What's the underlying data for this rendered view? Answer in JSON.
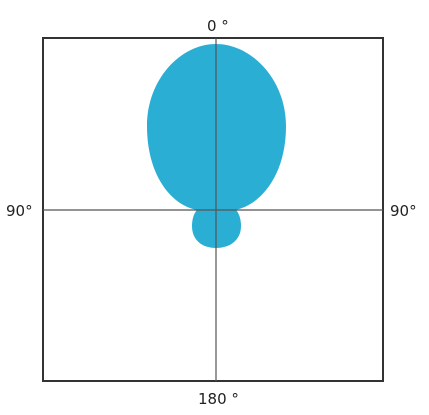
{
  "diagram": {
    "labels": {
      "top": "0 °",
      "bottom": "180 °",
      "left": "90°",
      "right": "90°"
    },
    "colors": {
      "lobe": "#2aaed4",
      "frame": "#333333",
      "axis": "#555555"
    }
  }
}
